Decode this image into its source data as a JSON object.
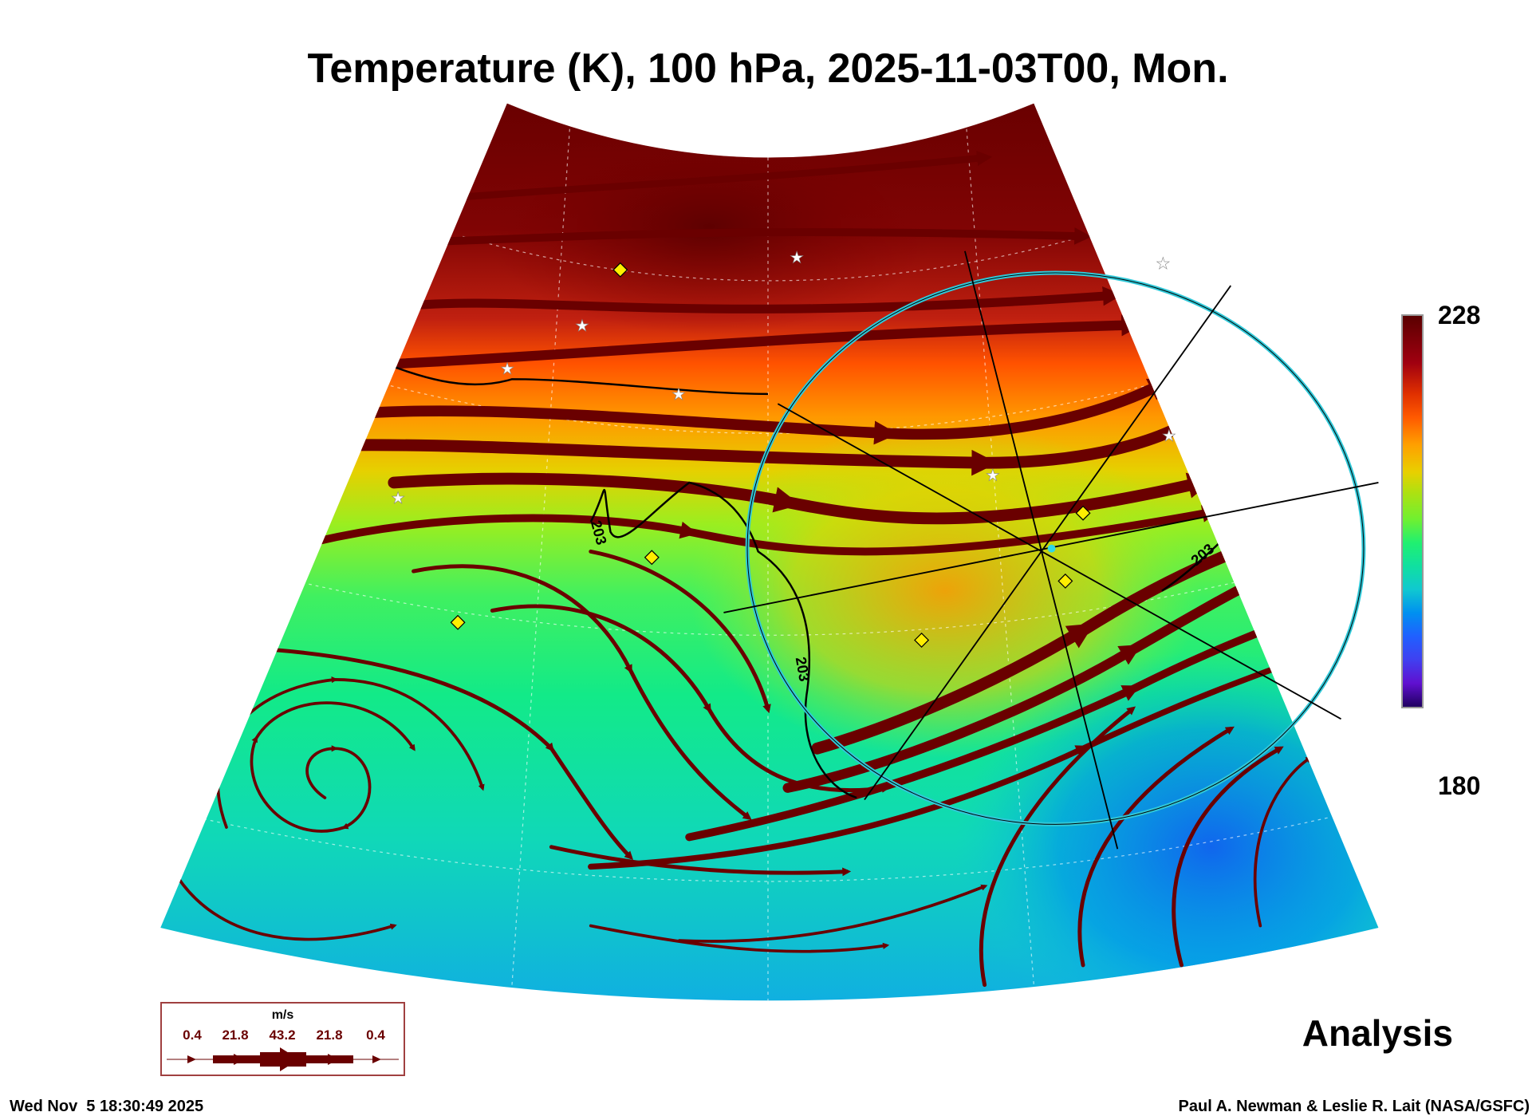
{
  "chart_data": {
    "type": "heatmap",
    "title": "Temperature (K), 100 hPa, 2025-11-03T00, Mon.",
    "variable": "Temperature (K)",
    "level": "100 hPa",
    "colorbar": {
      "min": 180,
      "max": 228,
      "min_label": "180",
      "max_label": "228"
    },
    "contour_labels": [
      "203",
      "203",
      "203"
    ],
    "overlay": "wind streamlines",
    "wind_legend": {
      "unit": "m/s",
      "values": [
        "0.4",
        "21.8",
        "43.2",
        "21.8",
        "0.4"
      ]
    },
    "colors": {
      "streamline": "#6a0000",
      "ring": "#30c8d8",
      "marker": "#ffee00"
    }
  },
  "labels": {
    "analysis": "Analysis",
    "timestamp": "Wed Nov  5 18:30:49 2025",
    "credit": "Paul A. Newman & Leslie R. Lait (NASA/GSFC)"
  }
}
